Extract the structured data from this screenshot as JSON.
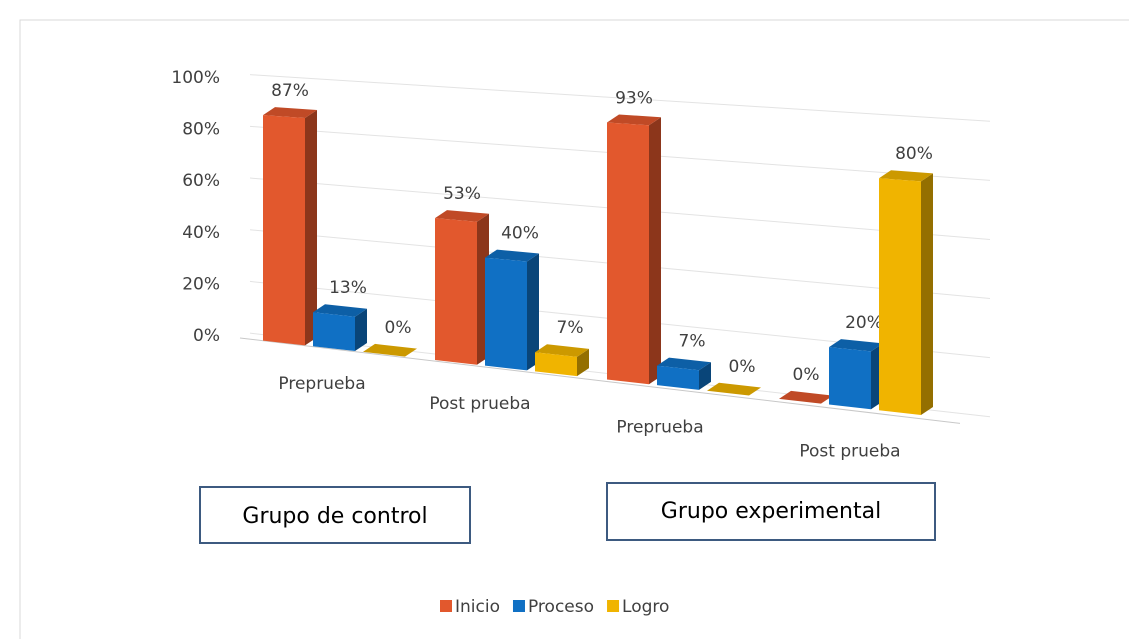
{
  "chart_data": {
    "type": "bar",
    "categories": [
      "Preprueba",
      "Post prueba",
      "Preprueba",
      "Post prueba"
    ],
    "series": [
      {
        "name": "Inicio",
        "color": "#e2582d",
        "values": [
          87,
          53,
          93,
          0
        ],
        "value_labels": [
          "87%",
          "53%",
          "93%",
          "0%"
        ]
      },
      {
        "name": "Proceso",
        "color": "#1070c4",
        "values": [
          13,
          40,
          7,
          20
        ],
        "value_labels": [
          "13%",
          "40%",
          "7%",
          "20%"
        ]
      },
      {
        "name": "Logro",
        "color": "#f0b400",
        "values": [
          0,
          7,
          0,
          80
        ],
        "value_labels": [
          "0%",
          "7%",
          "0%",
          "80%"
        ]
      }
    ],
    "ylim": [
      0,
      100
    ],
    "yticks": [
      {
        "value": 0,
        "label": "0%"
      },
      {
        "value": 20,
        "label": "20%"
      },
      {
        "value": 40,
        "label": "40%"
      },
      {
        "value": 60,
        "label": "60%"
      },
      {
        "value": 80,
        "label": "80%"
      },
      {
        "value": 100,
        "label": "100%"
      }
    ],
    "grid": true,
    "annotations": [
      "Grupo de  control",
      "Grupo  experimental"
    ],
    "legend": "bottom"
  }
}
